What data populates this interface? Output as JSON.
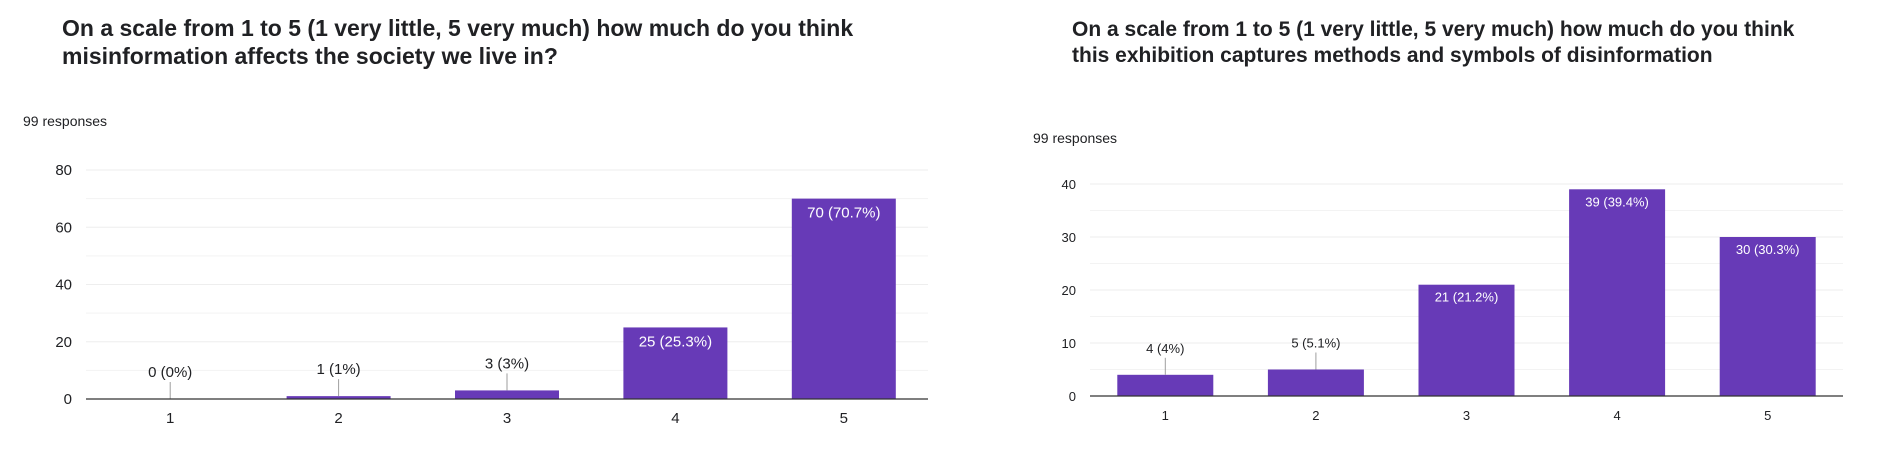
{
  "panels": [
    {
      "title_line1": "On a scale from 1 to 5 (1 very little, 5 very much) how much do you think",
      "title_line2": "misinformation affects the society we live in?",
      "responses": "99 responses"
    },
    {
      "title_line1": "On a scale from 1 to 5 (1 very little, 5 very much) how much do you think",
      "title_line2": "this exhibition captures methods and symbols of disinformation",
      "responses": "99 responses"
    }
  ],
  "colors": {
    "bar": "#673ab7",
    "grid": "#eeeeee",
    "axis": "#333333",
    "text": "#202124",
    "label_inside": "#ffffff"
  },
  "chart_data": [
    {
      "type": "bar",
      "title": "On a scale from 1 to 5 (1 very little, 5 very much) how much do you think misinformation affects the society we live in?",
      "categories": [
        "1",
        "2",
        "3",
        "4",
        "5"
      ],
      "values": [
        0,
        1,
        3,
        25,
        70
      ],
      "data_labels": [
        "0 (0%)",
        "1 (1%)",
        "3 (3%)",
        "25 (25.3%)",
        "70 (70.7%)"
      ],
      "yticks": [
        0,
        20,
        40,
        60,
        80
      ],
      "ylim": [
        0,
        80
      ],
      "grid": true,
      "xlabel": "",
      "ylabel": ""
    },
    {
      "type": "bar",
      "title": "On a scale from 1 to 5 (1 very little, 5 very much) how much do you think this exhibition captures methods and symbols of disinformation",
      "categories": [
        "1",
        "2",
        "3",
        "4",
        "5"
      ],
      "values": [
        4,
        5,
        21,
        39,
        30
      ],
      "data_labels": [
        "4 (4%)",
        "5 (5.1%)",
        "21 (21.2%)",
        "39 (39.4%)",
        "30 (30.3%)"
      ],
      "yticks": [
        0,
        10,
        20,
        30,
        40
      ],
      "ylim": [
        0,
        40
      ],
      "grid": true,
      "xlabel": "",
      "ylabel": ""
    }
  ]
}
